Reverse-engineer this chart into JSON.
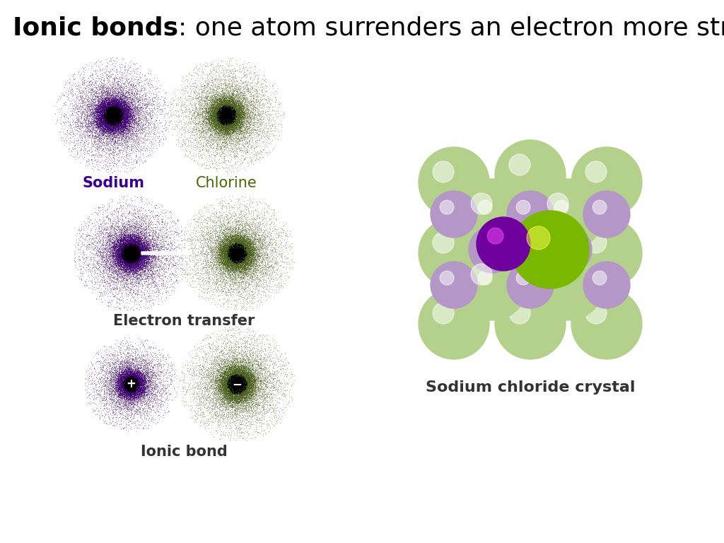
{
  "title_bold": "Ionic bonds",
  "title_regular": ": one atom surrenders an electron more strongly.",
  "title_fontsize": 26,
  "background_color": "#ffffff",
  "sodium_color": "#3d006e",
  "chlorine_color": "#4a5e1a",
  "sodium_label_color": "#3a0090",
  "chlorine_label_color": "#4a6600",
  "label_fontsize": 15,
  "electron_transfer_label": "Electron transfer",
  "ionic_bond_label": "Ionic bond",
  "nacl_label": "Sodium chloride crystal",
  "nacl_label_fontsize": 16,
  "na_sphere_color": "#7B00B0",
  "cl_sphere_color": "#88CC00",
  "na_outer_color": "#C8A8DC",
  "cl_outer_color": "#C8E89A"
}
